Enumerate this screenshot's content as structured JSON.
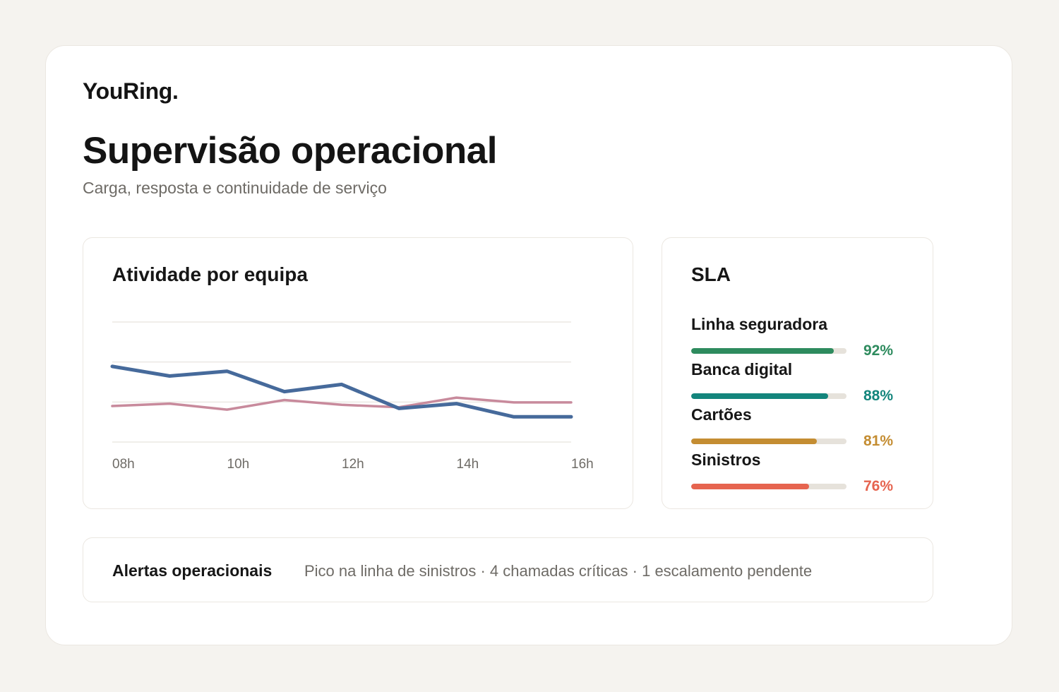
{
  "brand": {
    "name": "YouRing."
  },
  "header": {
    "title": "Supervisão operacional",
    "subtitle": "Carga, resposta e continuidade de serviço"
  },
  "activity": {
    "title": "Atividade por equipa"
  },
  "chart_data": {
    "type": "line",
    "title": "Atividade por equipa",
    "xlabel": "",
    "ylabel": "",
    "x": [
      "08h",
      "09h",
      "10h",
      "11h",
      "12h",
      "13h",
      "14h",
      "15h",
      "16h"
    ],
    "x_tick_labels": [
      "08h",
      "10h",
      "12h",
      "14h",
      "16h"
    ],
    "series": [
      {
        "color": "#466a9b",
        "values": [
          0.63,
          0.55,
          0.59,
          0.42,
          0.48,
          0.28,
          0.32,
          0.21,
          0.21
        ]
      },
      {
        "color": "#c88a9c",
        "values": [
          0.3,
          0.32,
          0.27,
          0.35,
          0.31,
          0.29,
          0.37,
          0.33,
          0.33
        ]
      }
    ],
    "ylim": [
      0,
      1
    ],
    "grid": true,
    "legend": "none"
  },
  "sla": {
    "title": "SLA",
    "items": [
      {
        "label": "Linha seguradora",
        "value": 92,
        "display": "92%",
        "color": "#2e8b5e"
      },
      {
        "label": "Banca digital",
        "value": 88,
        "display": "88%",
        "color": "#13857c"
      },
      {
        "label": "Cartões",
        "value": 81,
        "display": "81%",
        "color": "#c48d32"
      },
      {
        "label": "Sinistros",
        "value": 76,
        "display": "76%",
        "color": "#e6644f"
      }
    ]
  },
  "alerts": {
    "title": "Alertas operacionais",
    "text": "Pico na linha de sinistros · 4 chamadas críticas · 1 escalamento pendente"
  }
}
